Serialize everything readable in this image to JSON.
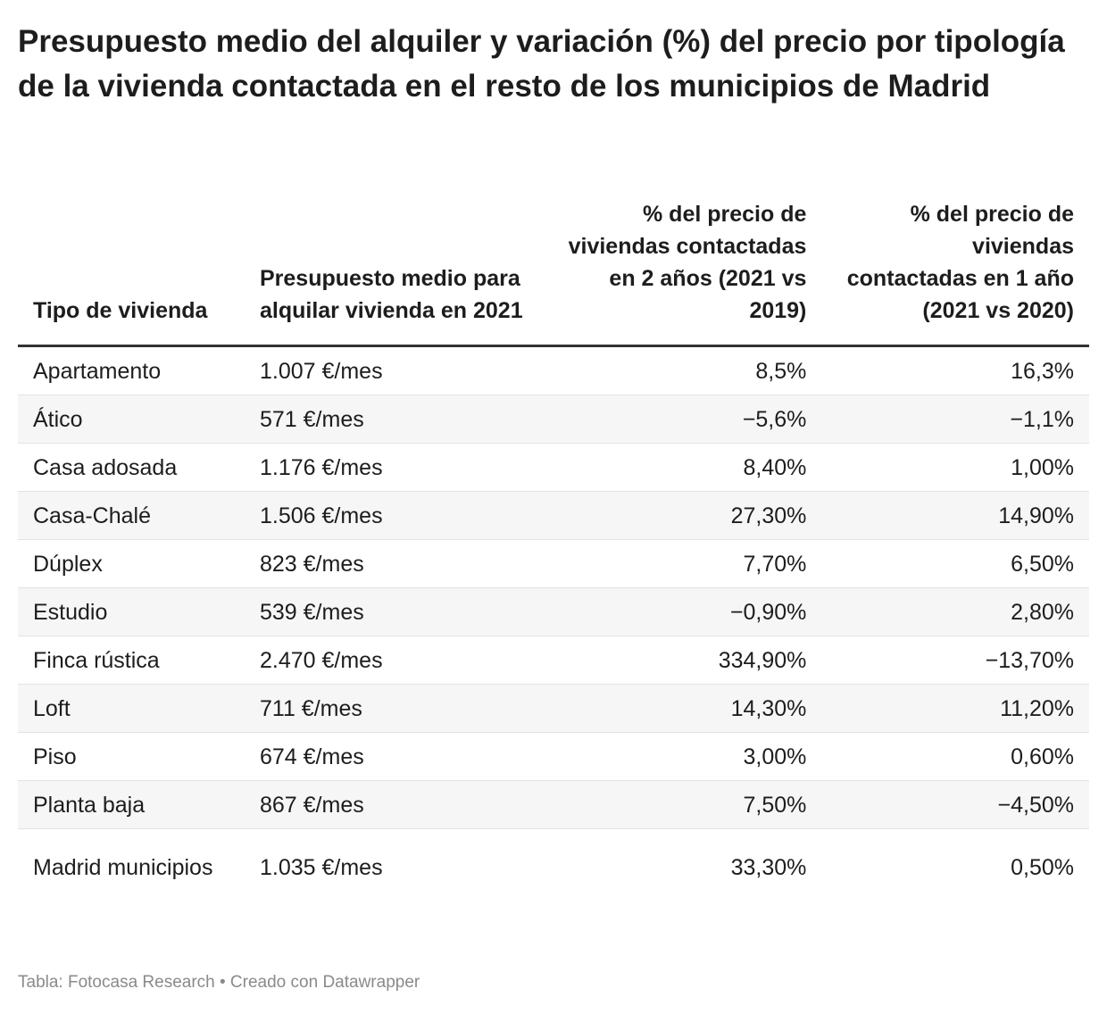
{
  "title": "Presupuesto medio del alquiler y variación (%) del precio por tipología de la vivienda contactada en el resto de los municipios de Madrid",
  "chart_data": {
    "type": "table",
    "title": "Presupuesto medio del alquiler y variación (%) del precio por tipología de la vivienda contactada en el resto de los municipios de Madrid",
    "columns": [
      "Tipo de vivienda",
      "Presupuesto medio para alquilar vivienda en 2021",
      "% del precio de viviendas contactadas en 2 años (2021 vs 2019)",
      "% del precio de viviendas contactadas en 1 año (2021 vs 2020)"
    ],
    "rows": [
      [
        "Apartamento",
        "1.007 €/mes",
        "8,5%",
        "16,3%"
      ],
      [
        "Ático",
        "571 €/mes",
        "−5,6%",
        "−1,1%"
      ],
      [
        "Casa adosada",
        "1.176 €/mes",
        "8,40%",
        "1,00%"
      ],
      [
        "Casa-Chalé",
        "1.506 €/mes",
        "27,30%",
        "14,90%"
      ],
      [
        "Dúplex",
        "823 €/mes",
        "7,70%",
        "6,50%"
      ],
      [
        "Estudio",
        "539 €/mes",
        "−0,90%",
        "2,80%"
      ],
      [
        "Finca rústica",
        "2.470 €/mes",
        "334,90%",
        "−13,70%"
      ],
      [
        "Loft",
        "711 €/mes",
        "14,30%",
        "11,20%"
      ],
      [
        "Piso",
        "674 €/mes",
        "3,00%",
        "0,60%"
      ],
      [
        "Planta baja",
        "867 €/mes",
        "7,50%",
        "−4,50%"
      ],
      [
        "Madrid municipios",
        "1.035 €/mes",
        "33,30%",
        "0,50%"
      ]
    ],
    "striped_rows": true
  },
  "footer": "Tabla: Fotocasa Research • Creado con Datawrapper",
  "colors": {
    "text": "#1d1d1d",
    "stripe": "#f6f6f6",
    "footer": "#8a8a8a",
    "header_rule": "#333333"
  }
}
